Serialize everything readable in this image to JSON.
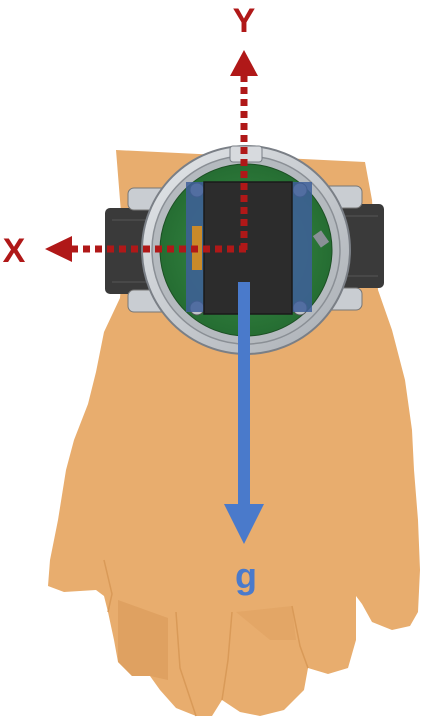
{
  "labels": {
    "y_axis": "Y",
    "x_axis": "X",
    "gravity": "g"
  },
  "icons": {
    "hand": "hand-illustration",
    "watch": "watch-device-icon",
    "y_arrow": "dotted-arrow-up-icon",
    "x_arrow": "dotted-arrow-left-icon",
    "g_arrow": "arrow-down-icon"
  },
  "colors": {
    "axis": "#b01818",
    "gravity": "#4a7acb",
    "skin": "#e8ad6e",
    "skin_shadow": "#d99a58",
    "watch_case": "#c9cdd2",
    "strap": "#3a3a3a",
    "pcb": "#2f7a3b",
    "screen": "#2c2c2c",
    "background": "#ffffff"
  }
}
